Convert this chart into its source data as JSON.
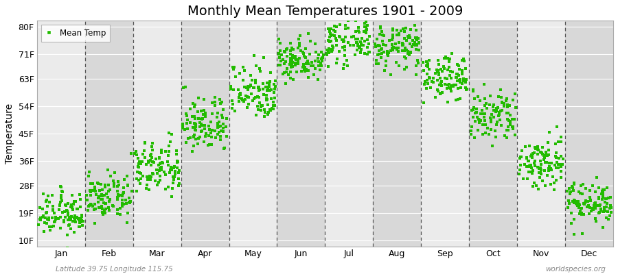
{
  "title": "Monthly Mean Temperatures 1901 - 2009",
  "ylabel": "Temperature",
  "xlabel_bottom_left": "Latitude 39.75 Longitude 115.75",
  "xlabel_bottom_right": "worldspecies.org",
  "legend_label": "Mean Temp",
  "ytick_labels": [
    "10F",
    "19F",
    "28F",
    "36F",
    "45F",
    "54F",
    "63F",
    "71F",
    "80F"
  ],
  "ytick_values": [
    10,
    19,
    28,
    36,
    45,
    54,
    63,
    71,
    80
  ],
  "ylim": [
    8,
    82
  ],
  "month_names": [
    "Jan",
    "Feb",
    "Mar",
    "Apr",
    "May",
    "Jun",
    "Jul",
    "Aug",
    "Sep",
    "Oct",
    "Nov",
    "Dec"
  ],
  "dot_color": "#22BB00",
  "bg_color_light": "#ebebeb",
  "bg_color_dark": "#d8d8d8",
  "bg_outer": "#ffffff",
  "title_fontsize": 14,
  "axis_label_fontsize": 10,
  "tick_fontsize": 9,
  "monthly_mean_temps_F": [
    18.5,
    24.0,
    33.5,
    48.0,
    59.0,
    69.5,
    75.5,
    73.5,
    63.5,
    50.5,
    35.5,
    22.5
  ],
  "monthly_std_F": [
    3.5,
    3.5,
    4.5,
    4.5,
    4.5,
    3.5,
    3.5,
    3.5,
    3.5,
    4.5,
    4.5,
    3.5
  ],
  "num_years": 109,
  "dot_size": 5,
  "warming_trend_total": 1.5
}
